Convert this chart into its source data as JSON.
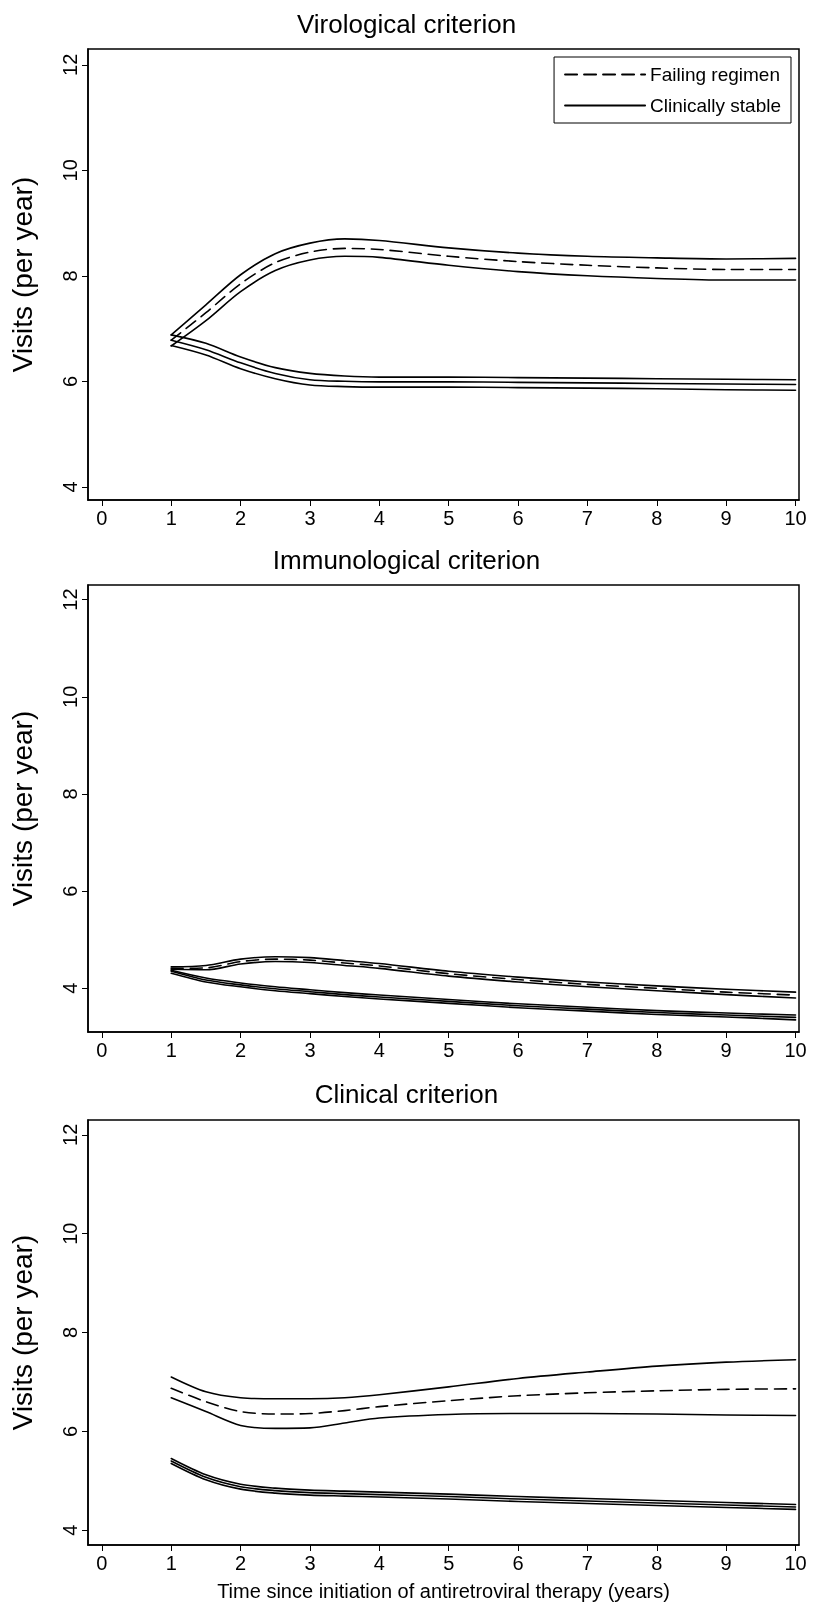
{
  "chart_data": [
    {
      "type": "line",
      "title": "Virological criterion",
      "ylabel": "Visits (per year)",
      "x": [
        1,
        1.5,
        2,
        2.5,
        3,
        3.5,
        4,
        5,
        6,
        7,
        8,
        9,
        10
      ],
      "xlim": [
        -0.2,
        10.05
      ],
      "xticks": [
        0,
        1,
        2,
        3,
        4,
        5,
        6,
        7,
        8,
        9,
        10
      ],
      "ylim": [
        3.75,
        12.3
      ],
      "yticks": [
        4,
        6,
        8,
        10,
        12
      ],
      "grid": false,
      "legend": "top right",
      "marker": "none",
      "series": [
        {
          "name": "Failing regimen",
          "color": "#000000",
          "line_style": "dashed",
          "values": [
            6.78,
            7.3,
            7.85,
            8.25,
            8.45,
            8.52,
            8.5,
            8.37,
            8.27,
            8.2,
            8.15,
            8.12,
            8.12
          ]
        },
        {
          "color": "#000000",
          "line_style": "solid",
          "values": [
            6.88,
            7.45,
            8.02,
            8.42,
            8.62,
            8.7,
            8.67,
            8.53,
            8.43,
            8.37,
            8.34,
            8.32,
            8.33
          ]
        },
        {
          "color": "#000000",
          "line_style": "solid",
          "values": [
            6.67,
            7.15,
            7.7,
            8.1,
            8.3,
            8.37,
            8.35,
            8.2,
            8.08,
            8.0,
            7.95,
            7.92,
            7.92
          ]
        },
        {
          "name": "Clinically stable",
          "color": "#000000",
          "line_style": "solid",
          "values": [
            6.78,
            6.6,
            6.35,
            6.15,
            6.03,
            6.0,
            5.99,
            5.99,
            5.98,
            5.97,
            5.96,
            5.95,
            5.94
          ]
        },
        {
          "color": "#000000",
          "line_style": "solid",
          "values": [
            6.88,
            6.72,
            6.46,
            6.26,
            6.15,
            6.1,
            6.08,
            6.08,
            6.07,
            6.06,
            6.05,
            6.04,
            6.03
          ]
        },
        {
          "color": "#000000",
          "line_style": "solid",
          "values": [
            6.68,
            6.5,
            6.24,
            6.05,
            5.93,
            5.9,
            5.89,
            5.89,
            5.88,
            5.87,
            5.86,
            5.84,
            5.83
          ]
        }
      ]
    },
    {
      "type": "line",
      "title": "Immunological criterion",
      "ylabel": "Visits (per year)",
      "x": [
        1,
        1.5,
        2,
        2.5,
        3,
        3.5,
        4,
        5,
        6,
        7,
        8,
        9,
        10
      ],
      "xlim": [
        -0.2,
        10.05
      ],
      "xticks": [
        0,
        1,
        2,
        3,
        4,
        5,
        6,
        7,
        8,
        9,
        10
      ],
      "ylim": [
        3.1,
        12.3
      ],
      "yticks": [
        4,
        6,
        8,
        10,
        12
      ],
      "grid": false,
      "marker": "none",
      "series": [
        {
          "color": "#000000",
          "line_style": "dashed",
          "values": [
            4.41,
            4.42,
            4.55,
            4.6,
            4.58,
            4.52,
            4.46,
            4.3,
            4.18,
            4.08,
            4.0,
            3.92,
            3.86
          ]
        },
        {
          "color": "#000000",
          "line_style": "solid",
          "values": [
            4.44,
            4.47,
            4.6,
            4.65,
            4.63,
            4.57,
            4.51,
            4.35,
            4.23,
            4.13,
            4.05,
            3.98,
            3.92
          ]
        },
        {
          "color": "#000000",
          "line_style": "solid",
          "values": [
            4.39,
            4.38,
            4.5,
            4.55,
            4.53,
            4.47,
            4.41,
            4.25,
            4.13,
            4.03,
            3.95,
            3.87,
            3.8
          ]
        },
        {
          "color": "#000000",
          "line_style": "solid",
          "values": [
            4.35,
            4.17,
            4.07,
            3.99,
            3.93,
            3.87,
            3.82,
            3.73,
            3.64,
            3.57,
            3.5,
            3.45,
            3.4
          ]
        },
        {
          "color": "#000000",
          "line_style": "solid",
          "values": [
            4.37,
            4.21,
            4.11,
            4.03,
            3.97,
            3.91,
            3.86,
            3.77,
            3.68,
            3.61,
            3.54,
            3.49,
            3.45
          ]
        },
        {
          "color": "#000000",
          "line_style": "solid",
          "values": [
            4.31,
            4.13,
            4.03,
            3.95,
            3.89,
            3.83,
            3.78,
            3.69,
            3.6,
            3.53,
            3.46,
            3.41,
            3.35
          ]
        }
      ]
    },
    {
      "type": "line",
      "title": "Clinical criterion",
      "xlabel": "Time since initiation of antiretroviral therapy (years)",
      "ylabel": "Visits (per year)",
      "x": [
        1,
        1.5,
        2,
        2.5,
        3,
        3.5,
        4,
        5,
        6,
        7,
        8,
        9,
        10
      ],
      "xlim": [
        -0.2,
        10.05
      ],
      "xticks": [
        0,
        1,
        2,
        3,
        4,
        5,
        6,
        7,
        8,
        9,
        10
      ],
      "ylim": [
        3.7,
        12.3
      ],
      "yticks": [
        4,
        6,
        8,
        10,
        12
      ],
      "grid": false,
      "marker": "none",
      "series": [
        {
          "color": "#000000",
          "line_style": "dashed",
          "values": [
            6.87,
            6.6,
            6.4,
            6.35,
            6.36,
            6.42,
            6.5,
            6.62,
            6.72,
            6.78,
            6.82,
            6.85,
            6.86
          ]
        },
        {
          "color": "#000000",
          "line_style": "solid",
          "values": [
            7.1,
            6.8,
            6.68,
            6.66,
            6.66,
            6.68,
            6.74,
            6.9,
            7.07,
            7.2,
            7.32,
            7.4,
            7.45
          ]
        },
        {
          "color": "#000000",
          "line_style": "solid",
          "values": [
            6.68,
            6.4,
            6.12,
            6.06,
            6.07,
            6.17,
            6.27,
            6.34,
            6.36,
            6.36,
            6.35,
            6.33,
            6.32
          ]
        },
        {
          "color": "#000000",
          "line_style": "solid",
          "values": [
            5.4,
            5.07,
            4.88,
            4.8,
            4.76,
            4.74,
            4.72,
            4.68,
            4.63,
            4.59,
            4.55,
            4.51,
            4.47
          ]
        },
        {
          "color": "#000000",
          "line_style": "solid",
          "values": [
            5.45,
            5.12,
            4.93,
            4.85,
            4.81,
            4.79,
            4.77,
            4.73,
            4.68,
            4.64,
            4.6,
            4.56,
            4.52
          ]
        },
        {
          "color": "#000000",
          "line_style": "solid",
          "values": [
            5.35,
            5.02,
            4.83,
            4.75,
            4.71,
            4.69,
            4.67,
            4.63,
            4.58,
            4.54,
            4.5,
            4.46,
            4.42
          ]
        }
      ]
    }
  ]
}
